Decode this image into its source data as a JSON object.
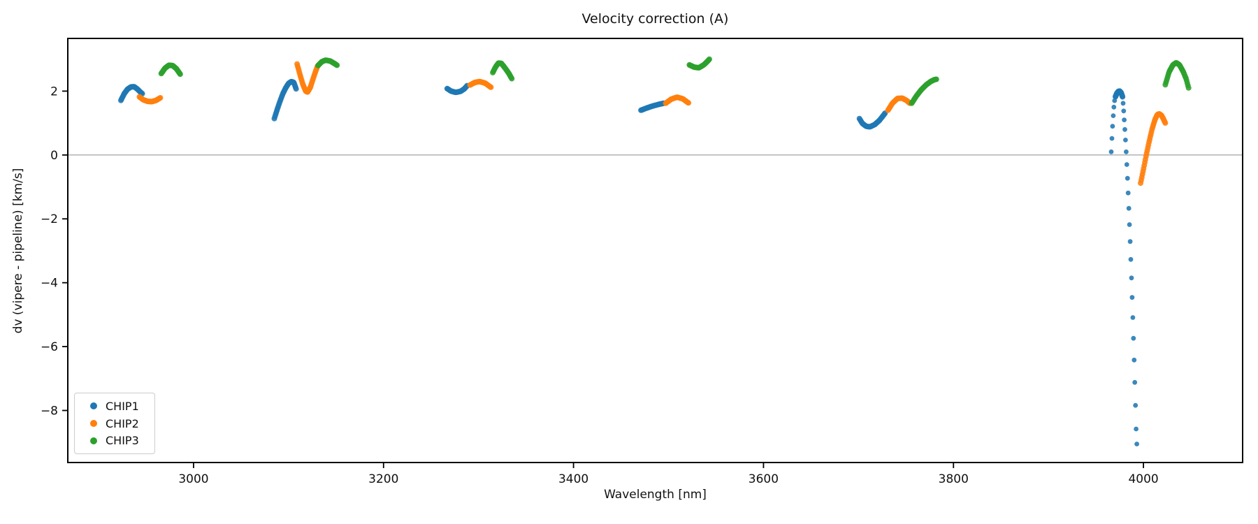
{
  "chart_data": {
    "type": "scatter",
    "title": "Velocity correction (A)",
    "xlabel": "Wavelength [nm]",
    "ylabel": "dv (vipere - pipeline) [km/s]",
    "xlim": [
      2867.6,
      4104.4
    ],
    "ylim": [
      -9.63,
      3.65
    ],
    "x_ticks": [
      3000,
      3200,
      3400,
      3600,
      3800,
      4000
    ],
    "y_ticks": [
      2,
      0,
      -2,
      -4,
      -6,
      -8
    ],
    "grid": "off",
    "zero_line": {
      "value": 0,
      "color": "#999999"
    },
    "legend_position": "lower-left",
    "frame_color": "#000000",
    "marker": {
      "dense_radius": 4.0,
      "sparse_radius": 3.4,
      "opacity": 0.88
    },
    "series": [
      {
        "name": "CHIP1",
        "color": "#1f77b4",
        "segments": [
          {
            "mode": "dense",
            "n": 34,
            "anchors": [
              [
                2923.5,
                1.71
              ],
              [
                2927,
                1.92
              ],
              [
                2930.5,
                2.06
              ],
              [
                2934,
                2.13
              ],
              [
                2937.5,
                2.14
              ],
              [
                2941,
                2.06
              ],
              [
                2944,
                1.97
              ],
              [
                2946,
                1.92
              ]
            ]
          },
          {
            "mode": "dense",
            "n": 36,
            "anchors": [
              [
                3085,
                1.14
              ],
              [
                3088,
                1.42
              ],
              [
                3091,
                1.68
              ],
              [
                3094,
                1.92
              ],
              [
                3097,
                2.1
              ],
              [
                3100,
                2.24
              ],
              [
                3103,
                2.3
              ],
              [
                3105.5,
                2.27
              ],
              [
                3108,
                2.07
              ]
            ]
          },
          {
            "mode": "dense",
            "n": 30,
            "anchors": [
              [
                3267,
                2.08
              ],
              [
                3271,
                2.0
              ],
              [
                3276,
                1.96
              ],
              [
                3281,
                1.99
              ],
              [
                3285,
                2.07
              ],
              [
                3288,
                2.17
              ]
            ]
          },
          {
            "mode": "dense",
            "n": 30,
            "anchors": [
              [
                3471,
                1.4
              ],
              [
                3477,
                1.47
              ],
              [
                3483,
                1.53
              ],
              [
                3489,
                1.58
              ],
              [
                3495,
                1.62
              ]
            ]
          },
          {
            "mode": "dense",
            "n": 34,
            "anchors": [
              [
                3701,
                1.14
              ],
              [
                3704,
                0.99
              ],
              [
                3708,
                0.9
              ],
              [
                3712,
                0.88
              ],
              [
                3717,
                0.95
              ],
              [
                3722,
                1.08
              ],
              [
                3728,
                1.31
              ]
            ]
          },
          {
            "mode": "dense",
            "n": 26,
            "anchors": [
              [
                3970.5,
                1.82
              ],
              [
                3972,
                1.93
              ],
              [
                3973.5,
                1.99
              ],
              [
                3975,
                2.0
              ],
              [
                3976.5,
                1.95
              ],
              [
                3978,
                1.82
              ]
            ]
          },
          {
            "mode": "dots",
            "anchors": [
              [
                3966.1,
                0.1
              ],
              [
                3966.8,
                0.52
              ],
              [
                3967.5,
                0.9
              ],
              [
                3968.2,
                1.23
              ],
              [
                3968.9,
                1.5
              ],
              [
                3969.6,
                1.7
              ],
              [
                3970.3,
                1.84
              ]
            ]
          },
          {
            "mode": "dots",
            "anchors": [
              [
                3978.6,
                1.62
              ],
              [
                3979.2,
                1.38
              ],
              [
                3979.8,
                1.1
              ],
              [
                3980.4,
                0.8
              ],
              [
                3981.1,
                0.47
              ],
              [
                3981.8,
                0.1
              ],
              [
                3982.5,
                -0.3
              ],
              [
                3983.2,
                -0.73
              ],
              [
                3983.9,
                -1.19
              ],
              [
                3984.6,
                -1.67
              ],
              [
                3985.3,
                -2.18
              ],
              [
                3986.0,
                -2.71
              ],
              [
                3986.7,
                -3.27
              ],
              [
                3987.4,
                -3.85
              ],
              [
                3988.1,
                -4.46
              ],
              [
                3988.8,
                -5.09
              ],
              [
                3989.5,
                -5.74
              ],
              [
                3990.2,
                -6.42
              ],
              [
                3990.9,
                -7.12
              ],
              [
                3991.6,
                -7.84
              ],
              [
                3992.3,
                -8.58
              ],
              [
                3993.0,
                -9.05
              ]
            ]
          }
        ]
      },
      {
        "name": "CHIP2",
        "color": "#ff7f0e",
        "segments": [
          {
            "mode": "dense",
            "n": 32,
            "anchors": [
              [
                2943,
                1.82
              ],
              [
                2947,
                1.73
              ],
              [
                2951.5,
                1.68
              ],
              [
                2956,
                1.67
              ],
              [
                2960.5,
                1.71
              ],
              [
                2965,
                1.79
              ]
            ]
          },
          {
            "mode": "dense",
            "n": 36,
            "anchors": [
              [
                3109,
                2.85
              ],
              [
                3112,
                2.52
              ],
              [
                3115,
                2.22
              ],
              [
                3118,
                2.0
              ],
              [
                3120,
                1.97
              ],
              [
                3123,
                2.12
              ],
              [
                3126,
                2.4
              ],
              [
                3128.5,
                2.62
              ],
              [
                3130.5,
                2.78
              ]
            ]
          },
          {
            "mode": "dense",
            "n": 30,
            "anchors": [
              [
                3291,
                2.19
              ],
              [
                3296,
                2.27
              ],
              [
                3301,
                2.3
              ],
              [
                3307,
                2.25
              ],
              [
                3313,
                2.12
              ]
            ]
          },
          {
            "mode": "dense",
            "n": 30,
            "anchors": [
              [
                3497,
                1.62
              ],
              [
                3503,
                1.75
              ],
              [
                3509,
                1.81
              ],
              [
                3515,
                1.76
              ],
              [
                3521,
                1.63
              ]
            ]
          },
          {
            "mode": "dense",
            "n": 32,
            "anchors": [
              [
                3731,
                1.4
              ],
              [
                3736,
                1.63
              ],
              [
                3741,
                1.77
              ],
              [
                3746,
                1.78
              ],
              [
                3751,
                1.7
              ],
              [
                3754,
                1.62
              ]
            ]
          },
          {
            "mode": "dense",
            "n": 42,
            "anchors": [
              [
                3997,
                -0.88
              ],
              [
                4000,
                -0.45
              ],
              [
                4003,
                0.0
              ],
              [
                4006,
                0.42
              ],
              [
                4009,
                0.8
              ],
              [
                4012,
                1.1
              ],
              [
                4014.5,
                1.26
              ],
              [
                4016.5,
                1.29
              ],
              [
                4019,
                1.24
              ],
              [
                4021,
                1.13
              ],
              [
                4023,
                1.0
              ]
            ]
          }
        ]
      },
      {
        "name": "CHIP3",
        "color": "#2ca02c",
        "segments": [
          {
            "mode": "dense",
            "n": 32,
            "anchors": [
              [
                2966,
                2.55
              ],
              [
                2970,
                2.72
              ],
              [
                2974,
                2.81
              ],
              [
                2978,
                2.8
              ],
              [
                2982,
                2.7
              ],
              [
                2986,
                2.53
              ]
            ]
          },
          {
            "mode": "dense",
            "n": 32,
            "anchors": [
              [
                3131,
                2.8
              ],
              [
                3135,
                2.92
              ],
              [
                3139,
                2.97
              ],
              [
                3144,
                2.94
              ],
              [
                3148,
                2.87
              ],
              [
                3151,
                2.81
              ]
            ]
          },
          {
            "mode": "dense",
            "n": 32,
            "anchors": [
              [
                3315,
                2.58
              ],
              [
                3318,
                2.76
              ],
              [
                3321,
                2.88
              ],
              [
                3324,
                2.87
              ],
              [
                3328,
                2.72
              ],
              [
                3332,
                2.55
              ],
              [
                3335,
                2.39
              ]
            ]
          },
          {
            "mode": "dense",
            "n": 30,
            "anchors": [
              [
                3522,
                2.82
              ],
              [
                3527,
                2.75
              ],
              [
                3532,
                2.73
              ],
              [
                3537,
                2.82
              ],
              [
                3541,
                2.93
              ],
              [
                3543,
                3.0
              ]
            ]
          },
          {
            "mode": "dense",
            "n": 32,
            "anchors": [
              [
                3756,
                1.62
              ],
              [
                3761,
                1.85
              ],
              [
                3766,
                2.04
              ],
              [
                3771,
                2.19
              ],
              [
                3776,
                2.3
              ],
              [
                3780,
                2.36
              ],
              [
                3782,
                2.37
              ]
            ]
          },
          {
            "mode": "dense",
            "n": 36,
            "anchors": [
              [
                4023,
                2.2
              ],
              [
                4027,
                2.6
              ],
              [
                4031,
                2.82
              ],
              [
                4034.5,
                2.89
              ],
              [
                4038,
                2.82
              ],
              [
                4042,
                2.6
              ],
              [
                4045,
                2.38
              ],
              [
                4047.5,
                2.1
              ]
            ]
          }
        ]
      }
    ]
  }
}
